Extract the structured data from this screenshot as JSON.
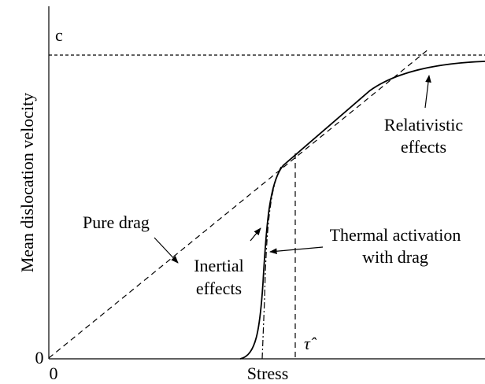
{
  "labels": {
    "c": "c",
    "y_axis": "Mean dislocation velocity",
    "x_axis": "Stress",
    "y_origin": "0",
    "x_origin": "0",
    "pure_drag": "Pure drag",
    "inertial": [
      "Inertial",
      "effects"
    ],
    "thermal": [
      "Thermal activation",
      "with drag"
    ],
    "relativistic": [
      "Relativistic",
      "effects"
    ],
    "tau": "τ̂"
  }
}
